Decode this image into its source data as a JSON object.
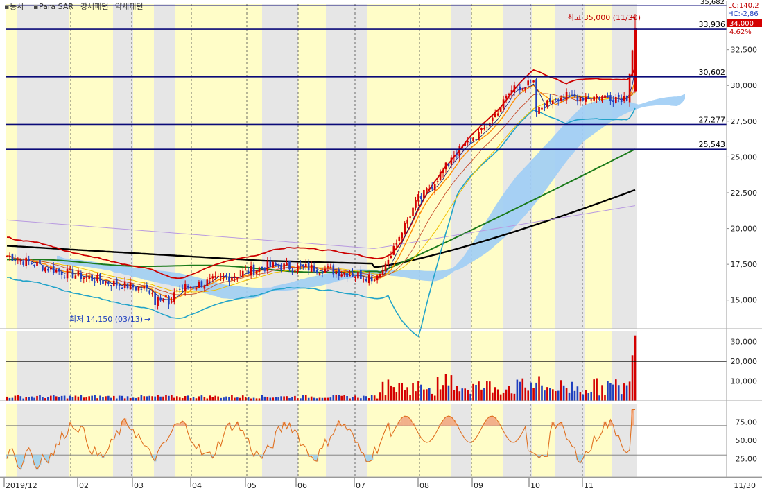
{
  "header": {
    "indicator_1": "동시",
    "indicator_2": "Para SAR",
    "indicator_3": "강세패턴",
    "indicator_4": "약세패턴"
  },
  "price_panel": {
    "top_cut_label": "35,682",
    "lc_label": "LC:140,2",
    "hc_label": "HC:-2,86",
    "last_price_label": "34,000",
    "change_label": "4.62%",
    "high_annotation": "최고 35,000 (11/30)",
    "low_annotation": "최저 14,150 (03/13)",
    "y_ticks": [
      "32,500",
      "30,000",
      "27,500",
      "25,000",
      "22,500",
      "20,000",
      "17,500",
      "15,000"
    ],
    "hlines": [
      {
        "value": 33936,
        "label": "33,936"
      },
      {
        "value": 30602,
        "label": "30,602"
      },
      {
        "value": 27277,
        "label": "27,277"
      },
      {
        "value": 25543,
        "label": "25,543"
      }
    ]
  },
  "volume_panel": {
    "y_ticks": [
      "30,000",
      "20,000",
      "10,000"
    ],
    "reference_line": 20000
  },
  "oscillator_panel": {
    "y_ticks": [
      "75.00",
      "50.00",
      "25.00"
    ],
    "upper_band": 70,
    "lower_band": 30
  },
  "x_axis": {
    "labels": [
      "2019/12",
      "02",
      "03",
      "04",
      "05",
      "06",
      "07",
      "08",
      "09",
      "10",
      "11"
    ],
    "end_label": "11/30"
  },
  "colors": {
    "up": "#d40000",
    "down": "#1f3fbf",
    "band_yellow": "#fffdc8",
    "band_gray": "#e6e6e6",
    "hline": "#0a0a78",
    "cloud": "#9fcdf5",
    "ma_black": "#000000",
    "ma_green": "#1a7a1a",
    "ma_cyan": "#22a3c9",
    "bollinger_red": "#cc0000",
    "osc_fill": "#f2b08a",
    "osc_low_fill": "#a8d4ea"
  },
  "chart_data": {
    "type": "candlestick",
    "x_range": [
      "2019/12",
      "11/30"
    ],
    "price_range": [
      13000,
      35682
    ],
    "high": {
      "value": 35000,
      "date": "11/30"
    },
    "low": {
      "value": 14150,
      "date": "03/13"
    },
    "last_close": 34000,
    "change_pct": 4.62,
    "monthly_close_path": [
      18100,
      17000,
      16200,
      15500,
      16400,
      17400,
      17200,
      16600,
      26500,
      29800,
      29000,
      28900,
      34000
    ],
    "volume_range": [
      0,
      35000
    ],
    "oscillator_range": [
      0,
      100
    ]
  }
}
